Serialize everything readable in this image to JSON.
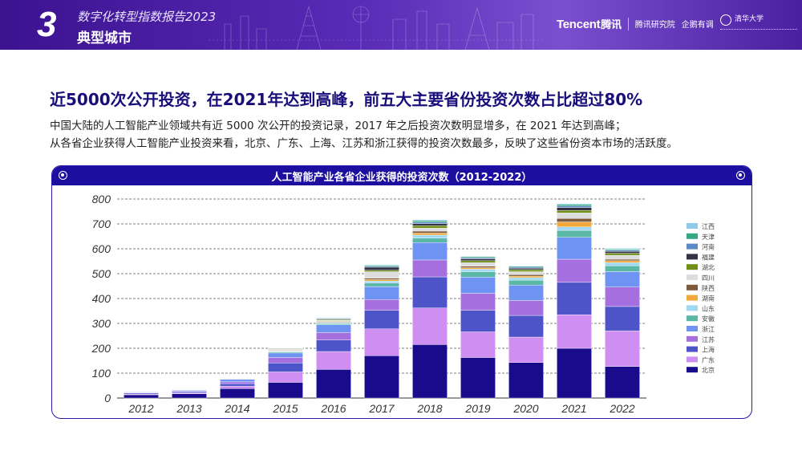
{
  "header": {
    "section_number": "3",
    "report_title": "数字化转型指数报告2023",
    "section_title": "典型城市",
    "logos": [
      "Tencent",
      "腾讯",
      "腾讯研究院",
      "企鹅有调",
      "清华大学"
    ]
  },
  "headline": "近5000次公开投资，在2021年达到高峰，前五大主要省份投资次数占比超过80%",
  "description": [
    "中国大陆的人工智能产业领域共有近 5000 次公开的投资记录，2017 年之后投资次数明显增多，在 2021 年达到高峰；",
    "从各省企业获得人工智能产业投资来看，北京、广东、上海、江苏和浙江获得的投资次数最多，反映了这些省份资本市场的活跃度。"
  ],
  "chart_data": {
    "type": "bar",
    "stacked": true,
    "title": "人工智能产业各省企业获得的投资次数（2012-2022）",
    "categories": [
      "2012",
      "2013",
      "2014",
      "2015",
      "2016",
      "2017",
      "2018",
      "2019",
      "2020",
      "2021",
      "2022"
    ],
    "ylim": [
      0,
      800
    ],
    "yticks": [
      0,
      100,
      200,
      300,
      400,
      500,
      600,
      700,
      800
    ],
    "grid": "dashed-horizontal",
    "legend_position": "right",
    "series": [
      {
        "name": "北京",
        "color": "#1a0a8c",
        "values": [
          13,
          17,
          38,
          63,
          115,
          170,
          215,
          163,
          143,
          200,
          127
        ]
      },
      {
        "name": "广东",
        "color": "#cf8ef2",
        "values": [
          3,
          4,
          10,
          42,
          72,
          108,
          147,
          103,
          102,
          135,
          143
        ]
      },
      {
        "name": "上海",
        "color": "#4d54c8",
        "values": [
          4,
          5,
          10,
          36,
          46,
          75,
          125,
          87,
          87,
          130,
          98
        ]
      },
      {
        "name": "江苏",
        "color": "#a66fe0",
        "values": [
          2,
          2,
          7,
          22,
          30,
          43,
          68,
          68,
          60,
          93,
          78
        ]
      },
      {
        "name": "浙江",
        "color": "#6e93f2",
        "values": [
          2,
          3,
          10,
          18,
          32,
          52,
          70,
          65,
          62,
          88,
          62
        ]
      },
      {
        "name": "安徽",
        "color": "#5cb8a6",
        "values": [
          0,
          0,
          1,
          4,
          4,
          14,
          18,
          22,
          20,
          28,
          24
        ]
      },
      {
        "name": "山东",
        "color": "#9ed8f2",
        "values": [
          0,
          0,
          1,
          3,
          4,
          8,
          12,
          10,
          10,
          14,
          12
        ]
      },
      {
        "name": "湖南",
        "color": "#f2a93b",
        "values": [
          0,
          0,
          0,
          2,
          2,
          6,
          8,
          6,
          6,
          20,
          8
        ]
      },
      {
        "name": "陕西",
        "color": "#7e5a3c",
        "values": [
          0,
          0,
          1,
          2,
          3,
          6,
          8,
          6,
          6,
          14,
          6
        ]
      },
      {
        "name": "四川",
        "color": "#dddddd",
        "values": [
          0,
          0,
          2,
          4,
          4,
          26,
          12,
          14,
          12,
          22,
          16
        ]
      },
      {
        "name": "湖北",
        "color": "#6e8f14",
        "values": [
          0,
          0,
          1,
          2,
          3,
          6,
          10,
          8,
          8,
          10,
          8
        ]
      },
      {
        "name": "福建",
        "color": "#333344",
        "values": [
          0,
          0,
          0,
          2,
          3,
          12,
          8,
          8,
          6,
          12,
          8
        ]
      },
      {
        "name": "河南",
        "color": "#5b8ac6",
        "values": [
          0,
          0,
          0,
          1,
          2,
          4,
          6,
          4,
          4,
          6,
          4
        ]
      },
      {
        "name": "天津",
        "color": "#34a884",
        "values": [
          0,
          0,
          0,
          1,
          2,
          4,
          6,
          4,
          4,
          6,
          4
        ]
      },
      {
        "name": "江西",
        "color": "#8ecbe8",
        "values": [
          0,
          0,
          1,
          1,
          2,
          2,
          4,
          2,
          2,
          4,
          4
        ]
      }
    ]
  }
}
